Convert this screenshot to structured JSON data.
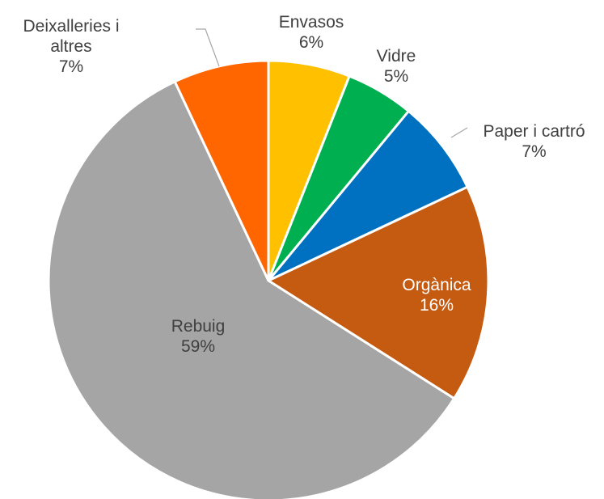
{
  "chart_data": {
    "type": "pie",
    "title": "",
    "slices": [
      {
        "name": "Envasos",
        "value": 6,
        "label": "6%",
        "color": "#FFC000"
      },
      {
        "name": "Vidre",
        "value": 5,
        "label": "5%",
        "color": "#00B050"
      },
      {
        "name": "Paper i cartró",
        "value": 7,
        "label": "7%",
        "color": "#0070C0"
      },
      {
        "name": "Orgànica",
        "value": 16,
        "label": "16%",
        "color": "#C55A11"
      },
      {
        "name": "Rebuig",
        "value": 59,
        "label": "59%",
        "color": "#A5A5A5"
      },
      {
        "name": "Deixalleries i altres",
        "value": 7,
        "label": "7%",
        "color": "#FF6600"
      }
    ],
    "legend": "none",
    "data_labels": "category-and-percent"
  }
}
